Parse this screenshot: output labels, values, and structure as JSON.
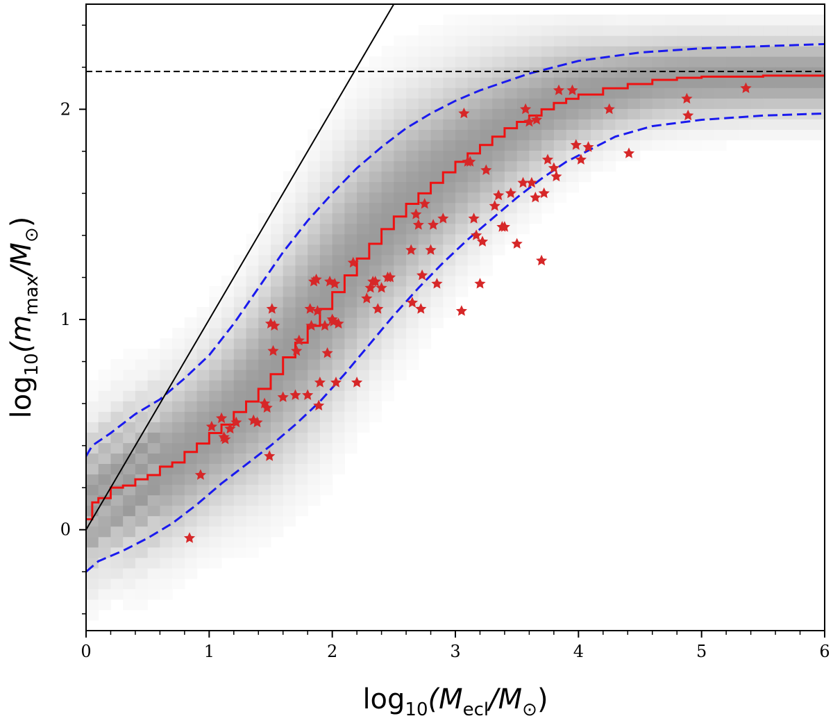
{
  "chart_data": {
    "type": "scatter",
    "xlabel": {
      "base": "log",
      "base_sub": "10",
      "open": "(M",
      "sub": "ecl",
      "rest": "/M",
      "sun": "⊙",
      "close": ")"
    },
    "ylabel": {
      "base": "log",
      "base_sub": "10",
      "open": "(m",
      "sub": "max",
      "rest": "/M",
      "sun": "⊙",
      "close": ")"
    },
    "xlim": [
      0,
      6
    ],
    "ylim": [
      -0.48,
      2.5
    ],
    "x_ticks": [
      0,
      1,
      2,
      3,
      4,
      5,
      6
    ],
    "x_tick_labels": [
      "0",
      "1",
      "2",
      "3",
      "4",
      "5",
      "6"
    ],
    "y_ticks": [
      0,
      1,
      2
    ],
    "y_tick_labels": [
      "0",
      "1",
      "2"
    ],
    "grid": false,
    "colors": {
      "median": "#ee1111",
      "percentile": "#1a1aee",
      "stars": "#d62728",
      "reference": "#000000",
      "density": "#808080"
    },
    "series": [
      {
        "name": "median",
        "style": "red-step",
        "x": [
          0.0,
          0.05,
          0.1,
          0.2,
          0.3,
          0.4,
          0.5,
          0.6,
          0.7,
          0.8,
          0.9,
          1.0,
          1.1,
          1.2,
          1.3,
          1.4,
          1.5,
          1.6,
          1.7,
          1.8,
          1.9,
          2.0,
          2.1,
          2.2,
          2.3,
          2.4,
          2.5,
          2.6,
          2.7,
          2.8,
          2.9,
          3.0,
          3.1,
          3.2,
          3.3,
          3.4,
          3.5,
          3.6,
          3.7,
          3.8,
          3.9,
          4.0,
          4.2,
          4.4,
          4.6,
          4.8,
          5.0,
          5.5,
          6.0
        ],
        "y": [
          0.05,
          0.13,
          0.15,
          0.2,
          0.21,
          0.24,
          0.26,
          0.3,
          0.32,
          0.37,
          0.41,
          0.46,
          0.5,
          0.56,
          0.61,
          0.67,
          0.74,
          0.82,
          0.89,
          0.97,
          1.05,
          1.13,
          1.21,
          1.29,
          1.36,
          1.43,
          1.49,
          1.55,
          1.6,
          1.65,
          1.7,
          1.75,
          1.79,
          1.83,
          1.87,
          1.91,
          1.94,
          1.97,
          2.0,
          2.03,
          2.05,
          2.07,
          2.1,
          2.12,
          2.14,
          2.15,
          2.155,
          2.16,
          2.16
        ]
      },
      {
        "name": "upper percentile",
        "style": "blue-dashed",
        "x": [
          0.0,
          0.05,
          0.2,
          0.4,
          0.6,
          0.8,
          1.0,
          1.2,
          1.4,
          1.6,
          1.8,
          2.0,
          2.2,
          2.4,
          2.6,
          2.8,
          3.0,
          3.2,
          3.4,
          3.6,
          3.8,
          4.0,
          4.5,
          5.0,
          5.5,
          6.0
        ],
        "y": [
          0.35,
          0.4,
          0.46,
          0.55,
          0.62,
          0.72,
          0.83,
          0.98,
          1.15,
          1.32,
          1.47,
          1.6,
          1.72,
          1.82,
          1.91,
          1.98,
          2.04,
          2.09,
          2.13,
          2.17,
          2.2,
          2.23,
          2.27,
          2.29,
          2.3,
          2.31
        ]
      },
      {
        "name": "lower percentile",
        "style": "blue-dashed",
        "x": [
          0.0,
          0.1,
          0.3,
          0.5,
          0.7,
          0.9,
          1.1,
          1.3,
          1.5,
          1.7,
          1.9,
          2.1,
          2.3,
          2.5,
          2.7,
          2.9,
          3.1,
          3.3,
          3.5,
          3.7,
          3.9,
          4.1,
          4.3,
          4.6,
          5.0,
          5.5,
          6.0
        ],
        "y": [
          -0.2,
          -0.15,
          -0.1,
          -0.04,
          0.03,
          0.12,
          0.22,
          0.31,
          0.4,
          0.5,
          0.61,
          0.74,
          0.88,
          1.02,
          1.15,
          1.27,
          1.38,
          1.48,
          1.58,
          1.67,
          1.75,
          1.81,
          1.87,
          1.92,
          1.95,
          1.97,
          1.98
        ]
      },
      {
        "name": "one-to-one line",
        "style": "black-solid",
        "x": [
          0,
          2.5
        ],
        "y": [
          0,
          2.5
        ]
      },
      {
        "name": "upper mass limit",
        "style": "black-dashed",
        "x": [
          0,
          6
        ],
        "y": [
          2.18,
          2.18
        ]
      }
    ],
    "points": {
      "x": [
        0.84,
        0.93,
        1.02,
        1.1,
        1.12,
        1.13,
        1.17,
        1.22,
        1.36,
        1.39,
        1.45,
        1.47,
        1.49,
        1.5,
        1.51,
        1.52,
        1.53,
        1.6,
        1.7,
        1.71,
        1.73,
        1.8,
        1.82,
        1.83,
        1.85,
        1.87,
        1.88,
        1.89,
        1.9,
        1.94,
        1.96,
        1.98,
        2.0,
        2.01,
        2.02,
        2.03,
        2.05,
        2.17,
        2.2,
        2.28,
        2.31,
        2.33,
        2.35,
        2.37,
        2.4,
        2.45,
        2.47,
        2.64,
        2.65,
        2.68,
        2.7,
        2.72,
        2.73,
        2.75,
        2.8,
        2.82,
        2.85,
        2.9,
        3.05,
        3.07,
        3.1,
        3.12,
        3.15,
        3.17,
        3.2,
        3.22,
        3.25,
        3.32,
        3.35,
        3.38,
        3.4,
        3.45,
        3.5,
        3.55,
        3.57,
        3.6,
        3.62,
        3.65,
        3.66,
        3.7,
        3.72,
        3.75,
        3.8,
        3.82,
        3.84,
        3.95,
        3.98,
        4.02,
        4.08,
        4.25,
        4.41,
        4.88,
        4.89,
        5.36
      ],
      "y": [
        -0.04,
        0.26,
        0.49,
        0.53,
        0.44,
        0.43,
        0.48,
        0.51,
        0.52,
        0.51,
        0.6,
        0.58,
        0.35,
        0.98,
        1.05,
        0.85,
        0.97,
        0.63,
        0.64,
        0.85,
        0.9,
        0.64,
        1.05,
        0.97,
        1.18,
        1.19,
        1.04,
        0.59,
        0.7,
        0.97,
        0.84,
        1.18,
        1.0,
        0.99,
        1.17,
        0.7,
        0.98,
        1.27,
        0.7,
        1.1,
        1.15,
        1.18,
        1.18,
        1.05,
        1.15,
        1.2,
        1.2,
        1.33,
        1.08,
        1.5,
        1.45,
        1.05,
        1.21,
        1.55,
        1.33,
        1.45,
        1.17,
        1.48,
        1.04,
        1.98,
        1.75,
        1.75,
        1.48,
        1.4,
        1.17,
        1.37,
        1.71,
        1.54,
        1.59,
        1.44,
        1.44,
        1.6,
        1.36,
        1.65,
        2.0,
        1.94,
        1.65,
        1.58,
        1.95,
        1.28,
        1.6,
        1.76,
        1.72,
        1.68,
        2.09,
        2.09,
        1.83,
        1.76,
        1.82,
        2.0,
        1.79,
        2.05,
        1.97,
        2.1
      ]
    }
  }
}
